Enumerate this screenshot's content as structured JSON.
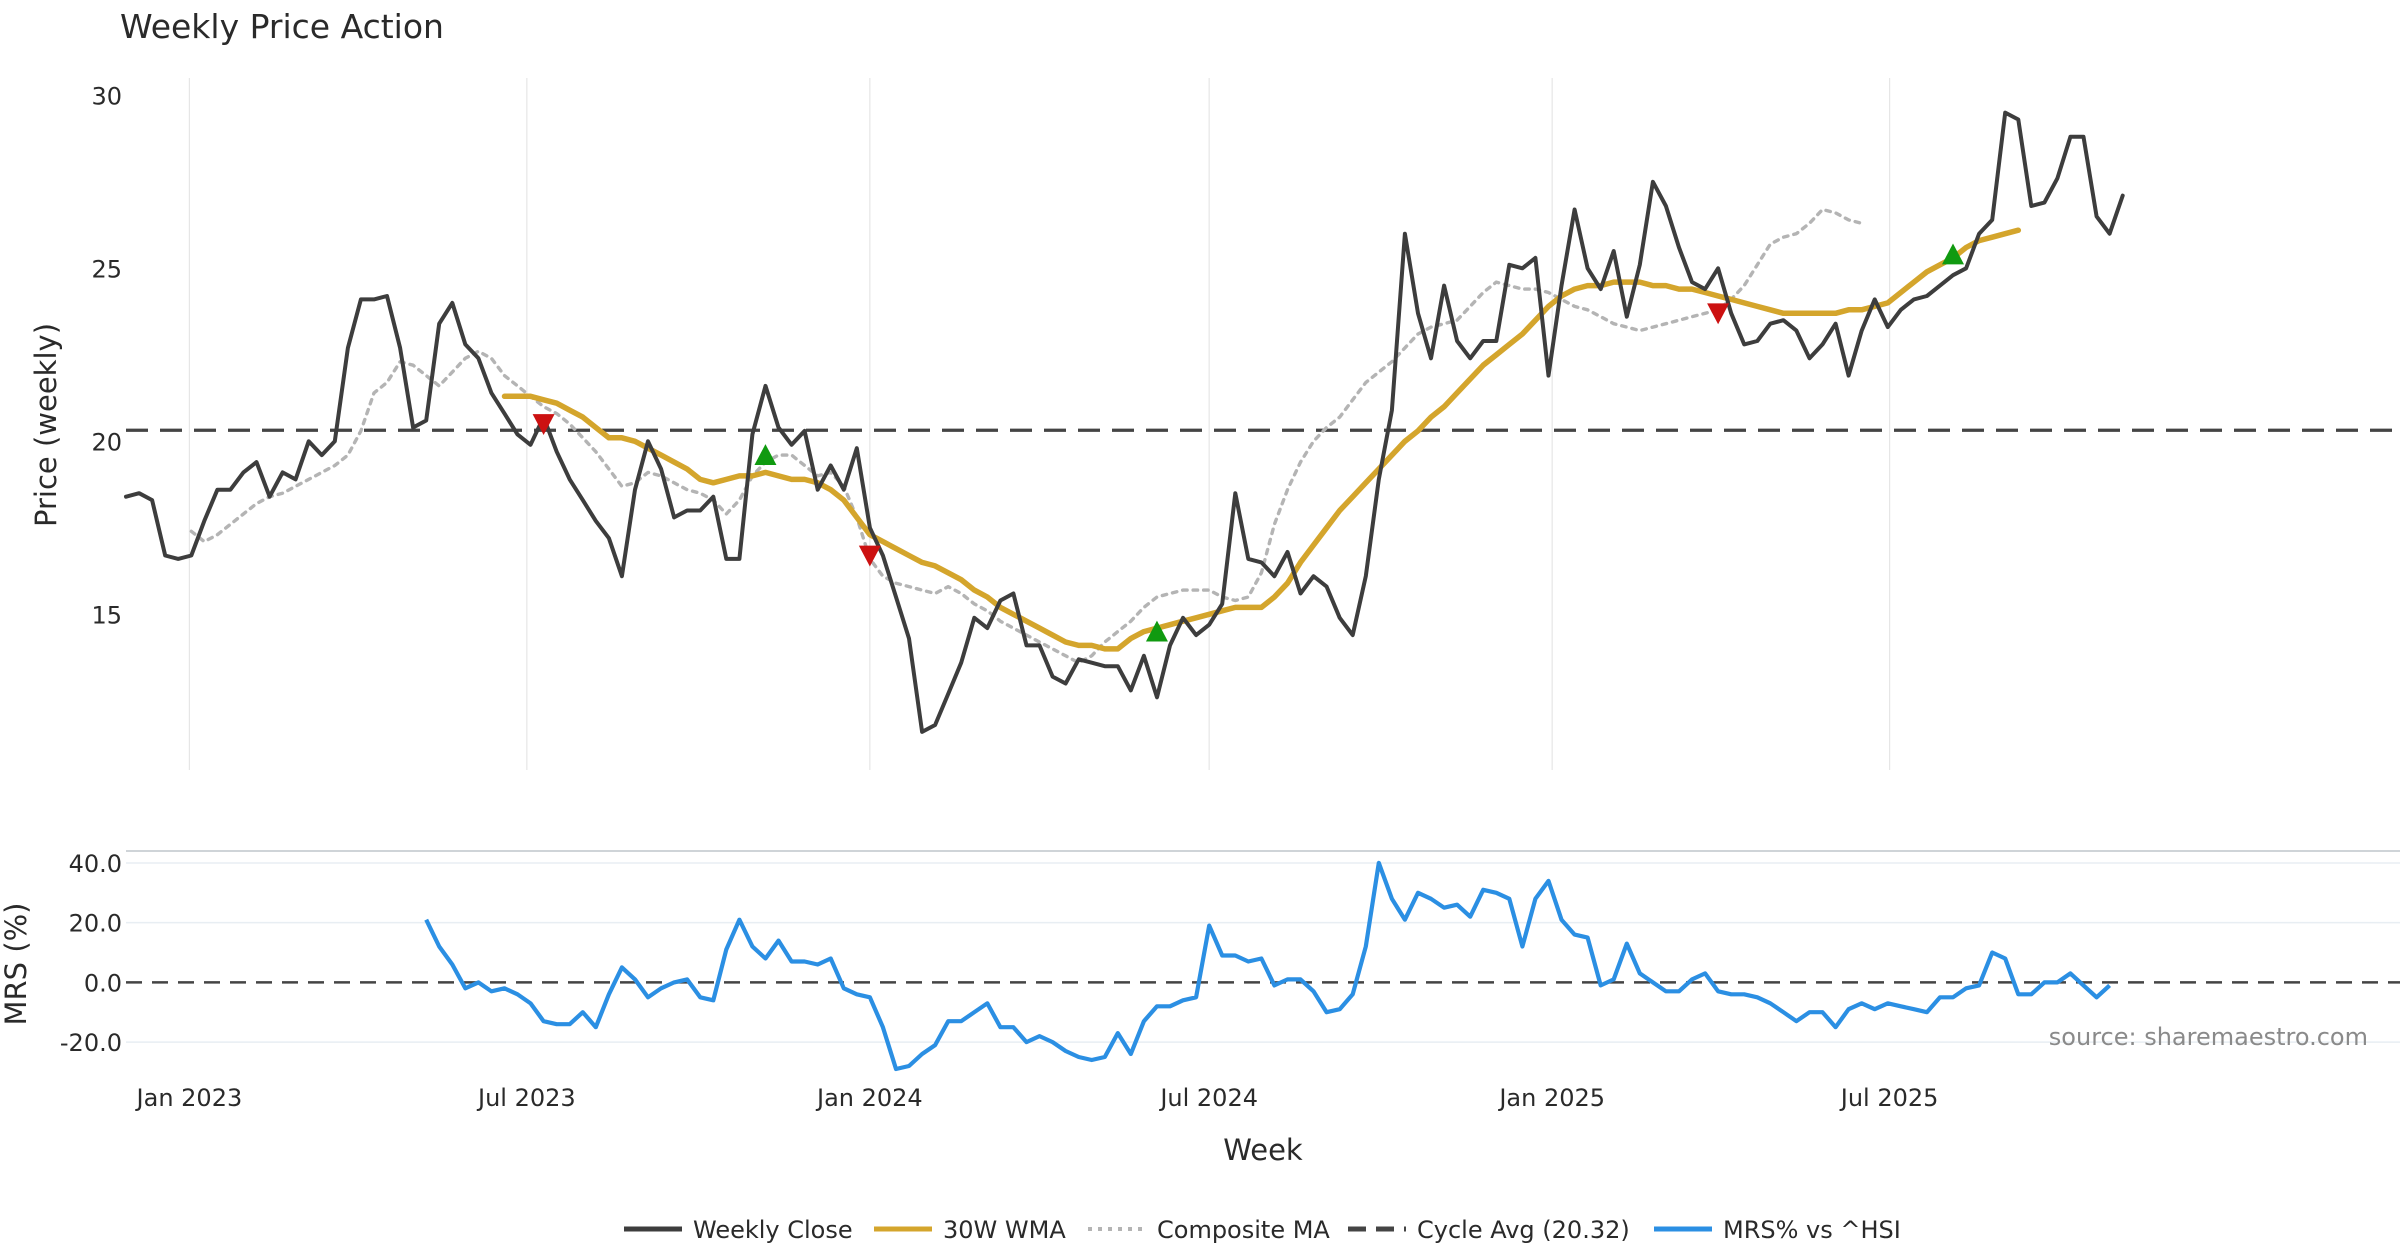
{
  "chart_data": [
    {
      "type": "line",
      "title": "Weekly Price Action",
      "ylabel": "Price (weekly)",
      "xlabel": "Week",
      "ylim": [
        10.5,
        30.5
      ],
      "yticks": [
        15,
        20,
        25,
        30
      ],
      "grid": "vertical",
      "x_start": "2022-11-28",
      "x_step_days": 7,
      "series": [
        {
          "name": "Weekly Close",
          "color": "#3d3d3d",
          "style": "solid",
          "start_index": 0,
          "values": [
            18.4,
            18.5,
            18.3,
            16.7,
            16.6,
            16.7,
            17.7,
            18.6,
            18.6,
            19.1,
            19.4,
            18.4,
            19.1,
            18.9,
            20.0,
            19.6,
            20.0,
            22.7,
            24.1,
            24.1,
            24.2,
            22.7,
            20.4,
            20.6,
            23.4,
            24.0,
            22.8,
            22.4,
            21.4,
            20.8,
            20.2,
            19.9,
            20.7,
            19.7,
            18.9,
            18.3,
            17.7,
            17.2,
            16.1,
            18.6,
            20.0,
            19.2,
            17.8,
            18.0,
            18.0,
            18.4,
            16.6,
            16.6,
            20.2,
            21.6,
            20.4,
            19.9,
            20.3,
            18.6,
            19.3,
            18.6,
            19.8,
            17.5,
            16.7,
            15.5,
            14.3,
            11.6,
            11.8,
            12.7,
            13.6,
            14.9,
            14.6,
            15.4,
            15.6,
            14.1,
            14.1,
            13.2,
            13.0,
            13.7,
            13.6,
            13.5,
            13.5,
            12.8,
            13.8,
            12.6,
            14.1,
            14.9,
            14.4,
            14.7,
            15.3,
            18.5,
            16.6,
            16.5,
            16.1,
            16.8,
            15.6,
            16.1,
            15.8,
            14.9,
            14.4,
            16.1,
            18.9,
            20.9,
            26.0,
            23.7,
            22.4,
            24.5,
            22.9,
            22.4,
            22.9,
            22.9,
            25.1,
            25.0,
            25.3,
            21.9,
            24.5,
            26.7,
            25.0,
            24.4,
            25.5,
            23.6,
            25.1,
            27.5,
            26.8,
            25.6,
            24.6,
            24.4,
            25.0,
            23.7,
            22.8,
            22.9,
            23.4,
            23.5,
            23.2,
            22.4,
            22.8,
            23.4,
            21.9,
            23.2,
            24.1,
            23.3,
            23.8,
            24.1,
            24.2,
            24.5,
            24.8,
            25.0,
            26.0,
            26.4,
            29.5,
            29.3,
            26.8,
            26.9,
            27.6,
            28.8,
            28.8,
            26.5,
            26.0,
            27.1
          ]
        },
        {
          "name": "30W WMA",
          "color": "#d4a52c",
          "style": "solid",
          "start_index": 29,
          "values": [
            21.3,
            21.3,
            21.3,
            21.2,
            21.1,
            20.9,
            20.7,
            20.4,
            20.1,
            20.1,
            20.0,
            19.8,
            19.6,
            19.4,
            19.2,
            18.9,
            18.8,
            18.9,
            19.0,
            19.0,
            19.1,
            19.0,
            18.9,
            18.9,
            18.8,
            18.6,
            18.3,
            17.8,
            17.3,
            17.1,
            16.9,
            16.7,
            16.5,
            16.4,
            16.2,
            16.0,
            15.7,
            15.5,
            15.2,
            15.0,
            14.8,
            14.6,
            14.4,
            14.2,
            14.1,
            14.1,
            14.0,
            14.0,
            14.3,
            14.5,
            14.6,
            14.7,
            14.8,
            14.9,
            15.0,
            15.1,
            15.2,
            15.2,
            15.2,
            15.5,
            15.9,
            16.5,
            17.0,
            17.5,
            18.0,
            18.4,
            18.8,
            19.2,
            19.6,
            20.0,
            20.3,
            20.7,
            21.0,
            21.4,
            21.8,
            22.2,
            22.5,
            22.8,
            23.1,
            23.5,
            23.9,
            24.2,
            24.4,
            24.5,
            24.5,
            24.6,
            24.6,
            24.6,
            24.5,
            24.5,
            24.4,
            24.4,
            24.3,
            24.2,
            24.1,
            24.0,
            23.9,
            23.8,
            23.7,
            23.7,
            23.7,
            23.7,
            23.7,
            23.8,
            23.8,
            23.9,
            24.0,
            24.3,
            24.6,
            24.9,
            25.1,
            25.3,
            25.6,
            25.8,
            25.9,
            26.0,
            26.1
          ]
        },
        {
          "name": "Composite MA",
          "color": "#b4b4b4",
          "style": "dotted",
          "start_index": 5,
          "values": [
            17.4,
            17.1,
            17.3,
            17.6,
            17.9,
            18.2,
            18.4,
            18.5,
            18.7,
            18.9,
            19.1,
            19.3,
            19.6,
            20.3,
            21.4,
            21.7,
            22.3,
            22.2,
            21.9,
            21.6,
            22.0,
            22.4,
            22.6,
            22.4,
            21.9,
            21.6,
            21.3,
            21.0,
            20.8,
            20.5,
            20.1,
            19.7,
            19.2,
            18.7,
            18.8,
            19.1,
            19.0,
            18.8,
            18.6,
            18.5,
            18.3,
            17.9,
            18.3,
            19.0,
            19.4,
            19.6,
            19.6,
            19.3,
            19.0,
            19.1,
            18.7,
            17.8,
            16.6,
            16.1,
            15.9,
            15.8,
            15.7,
            15.6,
            15.8,
            15.6,
            15.3,
            15.1,
            14.8,
            14.6,
            14.4,
            14.2,
            14.0,
            13.8,
            13.6,
            13.8,
            14.2,
            14.5,
            14.8,
            15.2,
            15.5,
            15.6,
            15.7,
            15.7,
            15.7,
            15.5,
            15.4,
            15.5,
            16.2,
            17.6,
            18.6,
            19.4,
            20.0,
            20.4,
            20.7,
            21.2,
            21.7,
            22.0,
            22.3,
            22.7,
            23.1,
            23.3,
            23.4,
            23.5,
            23.9,
            24.3,
            24.6,
            24.5,
            24.4,
            24.4,
            24.3,
            24.1,
            23.9,
            23.8,
            23.6,
            23.4,
            23.3,
            23.2,
            23.3,
            23.4,
            23.5,
            23.6,
            23.7,
            23.8,
            24.1,
            24.5,
            25.1,
            25.7,
            25.9,
            26.0,
            26.3,
            26.7,
            26.6,
            26.4,
            26.3
          ]
        }
      ],
      "reference_line": {
        "name": "Cycle Avg (20.32)",
        "value": 20.32,
        "color": "#444444",
        "style": "dashed"
      },
      "markers": [
        {
          "index": 32,
          "value": 20.5,
          "direction": "down",
          "color": "#cc1111"
        },
        {
          "index": 49,
          "value": 19.6,
          "direction": "up",
          "color": "#109a10"
        },
        {
          "index": 57,
          "value": 16.7,
          "direction": "down",
          "color": "#cc1111"
        },
        {
          "index": 79,
          "value": 14.5,
          "direction": "up",
          "color": "#109a10"
        },
        {
          "index": 122,
          "value": 23.7,
          "direction": "down",
          "color": "#cc1111"
        },
        {
          "index": 140,
          "value": 25.4,
          "direction": "up",
          "color": "#109a10"
        }
      ]
    },
    {
      "type": "line",
      "ylabel": "MRS (%)",
      "ylim": [
        -26,
        44
      ],
      "yticks": [
        "40.0",
        "20.0",
        "0.0",
        "-20.0"
      ],
      "ytick_values": [
        40,
        20,
        0,
        -20
      ],
      "grid": "horizontal",
      "zero_line": {
        "value": 0,
        "color": "#444444",
        "style": "dashed"
      },
      "series": [
        {
          "name": "MRS% vs ^HSI",
          "color": "#2b8fe3",
          "style": "solid",
          "start_index": 23,
          "values": [
            21,
            12,
            6,
            -2,
            0,
            -3,
            -2,
            -4,
            -7,
            -13,
            -14,
            -14,
            -10,
            -15,
            -4,
            5,
            1,
            -5,
            -2,
            0,
            1,
            -5,
            -6,
            11,
            21,
            12,
            8,
            14,
            7,
            7,
            6,
            8,
            -2,
            -4,
            -5,
            -15,
            -29,
            -28,
            -24,
            -21,
            -13,
            -13,
            -10,
            -7,
            -15,
            -15,
            -20,
            -18,
            -20,
            -23,
            -25,
            -26,
            -25,
            -17,
            -24,
            -13,
            -8,
            -8,
            -6,
            -5,
            19,
            9,
            9,
            7,
            8,
            -1,
            1,
            1,
            -3,
            -10,
            -9,
            -4,
            12,
            40,
            28,
            21,
            30,
            28,
            25,
            26,
            22,
            31,
            30,
            28,
            12,
            28,
            34,
            21,
            16,
            15,
            -1,
            1,
            13,
            3,
            0,
            -3,
            -3,
            1,
            3,
            -3,
            -4,
            -4,
            -5,
            -7,
            -10,
            -13,
            -10,
            -10,
            -15,
            -9,
            -7,
            -9,
            -7,
            -8,
            -9,
            -10,
            -5,
            -5,
            -2,
            -1,
            10,
            8,
            -4,
            -4,
            0,
            0,
            3,
            -1,
            -5,
            -1
          ]
        }
      ],
      "x_tick_labels": [
        "Jan 2023",
        "Jul 2023",
        "Jan 2024",
        "Jul 2024",
        "Jan 2025",
        "Jul 2025"
      ],
      "x_tick_dates": [
        "2023-01-01",
        "2023-07-01",
        "2024-01-01",
        "2024-07-01",
        "2025-01-01",
        "2025-07-01"
      ],
      "annotation": "source: sharemaestro.com"
    }
  ],
  "legend": [
    {
      "label": "Weekly Close",
      "color": "#3d3d3d",
      "style": "solid"
    },
    {
      "label": "30W WMA",
      "color": "#d4a52c",
      "style": "solid"
    },
    {
      "label": "Composite MA",
      "color": "#b4b4b4",
      "style": "dotted"
    },
    {
      "label": "Cycle Avg (20.32)",
      "color": "#444444",
      "style": "dashed"
    },
    {
      "label": "MRS% vs ^HSI",
      "color": "#2b8fe3",
      "style": "solid"
    }
  ]
}
